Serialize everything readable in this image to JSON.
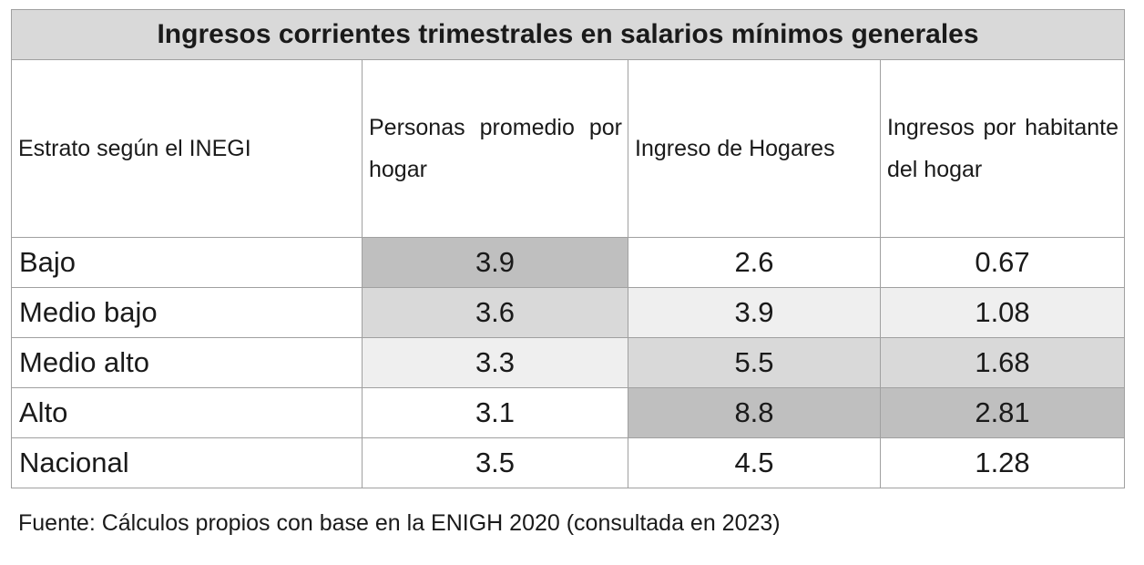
{
  "table": {
    "title": "Ingresos corrientes trimestrales en salarios mínimos generales",
    "header": [
      "Estrato según el INEGI",
      "Personas promedio por hogar",
      "Ingreso de Hogares",
      "Ingresos por habitante del hogar"
    ],
    "rows": [
      [
        "Bajo",
        3.9,
        2.6,
        0.67
      ],
      [
        "Medio bajo",
        3.6,
        3.9,
        1.08
      ],
      [
        "Medio alto",
        3.3,
        5.5,
        1.68
      ],
      [
        "Alto",
        3.1,
        8.8,
        2.81
      ],
      [
        "Nacional",
        3.5,
        4.5,
        1.28
      ]
    ]
  },
  "footnote": "Fuente: Cálculos propios con base en la ENIGH 2020 (consultada en 2023)"
}
